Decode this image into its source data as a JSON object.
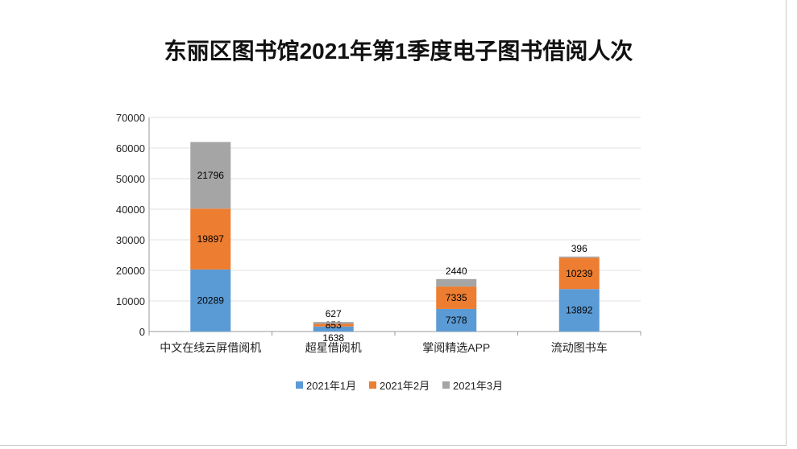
{
  "chart_data": {
    "type": "bar",
    "stacked": true,
    "title": "东丽区图书馆2021年第1季度电子图书借阅人次",
    "categories": [
      "中文在线云屏借阅机",
      "超星借阅机",
      "掌阅精选APP",
      "流动图书车"
    ],
    "series": [
      {
        "name": "2021年1月",
        "color": "#5b9bd5",
        "values": [
          20289,
          1638,
          7378,
          13892
        ]
      },
      {
        "name": "2021年2月",
        "color": "#ed7d31",
        "values": [
          19897,
          853,
          7335,
          10239
        ]
      },
      {
        "name": "2021年3月",
        "color": "#a5a5a5",
        "values": [
          21796,
          627,
          2440,
          396
        ]
      }
    ],
    "ylim": [
      0,
      70000
    ],
    "yticks": [
      0,
      10000,
      20000,
      30000,
      40000,
      50000,
      60000,
      70000
    ],
    "grid": true,
    "legend": "bottom",
    "xlabel": "",
    "ylabel": ""
  }
}
